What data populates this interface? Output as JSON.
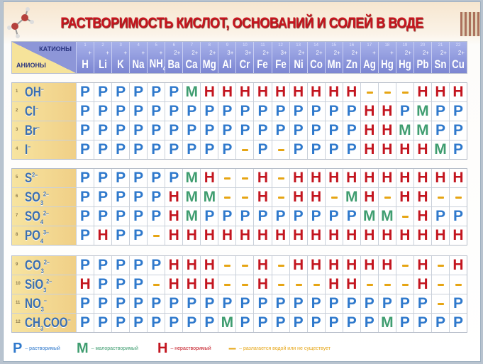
{
  "title": "РАСТВОРИМОСТЬ КИСЛОТ, ОСНОВАНИЙ И СОЛЕЙ В ВОДЕ",
  "header": {
    "cations_label": "КАТИОНЫ",
    "anions_label": "АНИОНЫ"
  },
  "cations": [
    {
      "idx": "1",
      "sym": "H",
      "sub": "",
      "chg": "+"
    },
    {
      "idx": "2",
      "sym": "Li",
      "sub": "",
      "chg": "+"
    },
    {
      "idx": "3",
      "sym": "K",
      "sub": "",
      "chg": "+"
    },
    {
      "idx": "4",
      "sym": "Na",
      "sub": "",
      "chg": "+"
    },
    {
      "idx": "5",
      "sym": "NH",
      "sub": "4",
      "chg": "+"
    },
    {
      "idx": "6",
      "sym": "Ba",
      "sub": "",
      "chg": "2+"
    },
    {
      "idx": "7",
      "sym": "Ca",
      "sub": "",
      "chg": "2+"
    },
    {
      "idx": "8",
      "sym": "Mg",
      "sub": "",
      "chg": "2+"
    },
    {
      "idx": "9",
      "sym": "Al",
      "sub": "",
      "chg": "3+"
    },
    {
      "idx": "10",
      "sym": "Cr",
      "sub": "",
      "chg": "3+"
    },
    {
      "idx": "11",
      "sym": "Fe",
      "sub": "",
      "chg": "2+"
    },
    {
      "idx": "12",
      "sym": "Fe",
      "sub": "",
      "chg": "3+"
    },
    {
      "idx": "13",
      "sym": "Ni",
      "sub": "",
      "chg": "2+"
    },
    {
      "idx": "14",
      "sym": "Co",
      "sub": "",
      "chg": "2+"
    },
    {
      "idx": "15",
      "sym": "Mn",
      "sub": "",
      "chg": "2+"
    },
    {
      "idx": "16",
      "sym": "Zn",
      "sub": "",
      "chg": "2+"
    },
    {
      "idx": "17",
      "sym": "Ag",
      "sub": "",
      "chg": "+"
    },
    {
      "idx": "18",
      "sym": "Hg",
      "sub": "",
      "chg": "+"
    },
    {
      "idx": "19",
      "sym": "Hg",
      "sub": "",
      "chg": "2+"
    },
    {
      "idx": "20",
      "sym": "Pb",
      "sub": "",
      "chg": "2+"
    },
    {
      "idx": "21",
      "sym": "Sn",
      "sub": "",
      "chg": "2+"
    },
    {
      "idx": "22",
      "sym": "Cu",
      "sub": "",
      "chg": "2+"
    }
  ],
  "symbols": {
    "P": "Р",
    "M": "М",
    "H": "Н",
    "D": "–"
  },
  "groups": [
    [
      {
        "idx": "1",
        "f": "OH",
        "sub": "",
        "tail": "",
        "chg": "–",
        "cells": "PPPPPPMHHHHHHHHHDDDHHH"
      },
      {
        "idx": "2",
        "f": "Cl",
        "sub": "",
        "tail": "",
        "chg": "–",
        "cells": "PPPPPPPPPPPPPPPPHHPMPP"
      },
      {
        "idx": "3",
        "f": "Br",
        "sub": "",
        "tail": "",
        "chg": "–",
        "cells": "PPPPPPPPPPPPPPPPHHMMPP"
      },
      {
        "idx": "4",
        "f": "I",
        "sub": "",
        "tail": "",
        "chg": "–",
        "cells": "PPPPPPPPPDPDPPPPHHHHMP"
      }
    ],
    [
      {
        "idx": "5",
        "f": "S",
        "sub": "",
        "tail": "",
        "chg": "2–",
        "cells": "PPPPPPMHDDHDHHHHHHHHHH"
      },
      {
        "idx": "6",
        "f": "SO",
        "sub": "3",
        "tail": "",
        "chg": "2–",
        "cells": "PPPPPHMMDDHDHHDMHDHHDD"
      },
      {
        "idx": "7",
        "f": "SO",
        "sub": "4",
        "tail": "",
        "chg": "2–",
        "cells": "PPPPPHMPPPPPPPPPMMDHPP"
      },
      {
        "idx": "8",
        "f": "PO",
        "sub": "4",
        "tail": "",
        "chg": "3–",
        "cells": "PHPPDHHHHHHHHHHHHHHHHH"
      }
    ],
    [
      {
        "idx": "9",
        "f": "CO",
        "sub": "3",
        "tail": "",
        "chg": "2–",
        "cells": "PPPPPHHHDDHDHHHHHHDHDH"
      },
      {
        "idx": "10",
        "f": "SiO",
        "sub": "3",
        "tail": "",
        "chg": "2–",
        "cells": "HPPPDHHHDDHDDDHHDDDHDD"
      },
      {
        "idx": "11",
        "f": "NO",
        "sub": "3",
        "tail": "",
        "chg": "–",
        "cells": "PPPPPPPPPPPPPPPPPPPPDP"
      },
      {
        "idx": "12",
        "f": "CH",
        "sub": "3",
        "tail": "COO",
        "chg": "–",
        "cells": "PPPPPPPPMPPPPPPPPMPPPP"
      }
    ]
  ],
  "legend": [
    {
      "code": "P",
      "text": "– растворимый"
    },
    {
      "code": "M",
      "text": "– малорастворимый"
    },
    {
      "code": "H",
      "text": "– нерастворимый"
    },
    {
      "code": "D",
      "text": "– разлагается водой или не существует"
    }
  ],
  "colors": {
    "P": "#2f79cc",
    "M": "#3f9d70",
    "H": "#c3151f",
    "D": "#e6a514",
    "header": "#7c86d2",
    "anion_bg": "#f0cf86",
    "title": "#c8141e"
  }
}
